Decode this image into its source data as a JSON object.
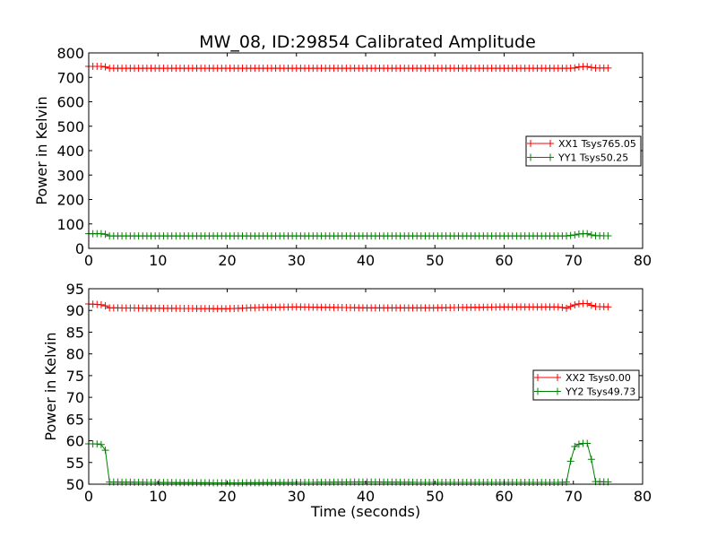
{
  "figure": {
    "title": "MW_08, ID:29854 Calibrated Amplitude"
  },
  "chart_data": [
    {
      "type": "line",
      "title": "MW_08, ID:29854 Calibrated Amplitude",
      "xlabel": "",
      "ylabel": "Power in Kelvin",
      "xlim": [
        0,
        80
      ],
      "ylim": [
        0,
        800
      ],
      "xticks": [
        0,
        10,
        20,
        30,
        40,
        50,
        60,
        70,
        80
      ],
      "yticks": [
        0,
        100,
        200,
        300,
        400,
        500,
        600,
        700,
        800
      ],
      "legend_position": "center-right",
      "series": [
        {
          "name": "XX1 Tsys765.05",
          "color": "#ff0000",
          "marker": "plus",
          "x": [
            0,
            2,
            2.5,
            3,
            70,
            71,
            72,
            73,
            75.5
          ],
          "y": [
            745,
            745,
            742,
            737,
            737,
            744,
            744,
            738,
            738
          ]
        },
        {
          "name": "YY1 Tsys50.25",
          "color": "#008000",
          "marker": "plus",
          "x": [
            0,
            2,
            2.5,
            3,
            69,
            70,
            71,
            72,
            73,
            75.5
          ],
          "y": [
            60,
            60,
            57,
            51,
            51,
            54,
            60,
            60,
            52,
            51
          ]
        }
      ]
    },
    {
      "type": "line",
      "title": "",
      "xlabel": "Time (seconds)",
      "ylabel": "Power in Kelvin",
      "xlim": [
        0,
        80
      ],
      "ylim": [
        50,
        95
      ],
      "xticks": [
        0,
        10,
        20,
        30,
        40,
        50,
        60,
        70,
        80
      ],
      "yticks": [
        50,
        55,
        60,
        65,
        70,
        75,
        80,
        85,
        90,
        95
      ],
      "legend_position": "center-right",
      "series": [
        {
          "name": "XX2 Tsys0.00",
          "color": "#ff0000",
          "marker": "plus",
          "x": [
            0,
            2,
            2.5,
            3,
            10,
            20,
            25,
            30,
            40,
            50,
            60,
            68,
            69,
            70,
            71,
            72,
            73,
            75.5
          ],
          "y": [
            91.5,
            91.3,
            91,
            90.6,
            90.5,
            90.4,
            90.7,
            90.8,
            90.6,
            90.6,
            90.8,
            90.8,
            90.5,
            91.2,
            91.6,
            91.6,
            90.9,
            90.8
          ]
        },
        {
          "name": "YY2 Tsys49.73",
          "color": "#008000",
          "marker": "plus",
          "x": [
            0,
            1,
            2,
            2.5,
            3,
            10,
            20,
            30,
            40,
            50,
            60,
            68,
            69,
            69.5,
            70,
            71,
            72,
            72.5,
            73,
            75.5
          ],
          "y": [
            59.3,
            59.3,
            59.1,
            57.5,
            50.5,
            50.4,
            50.3,
            50.4,
            50.5,
            50.4,
            50.4,
            50.4,
            50.5,
            54.5,
            58.5,
            59.4,
            59.4,
            57,
            50.6,
            50.5
          ]
        }
      ]
    }
  ]
}
